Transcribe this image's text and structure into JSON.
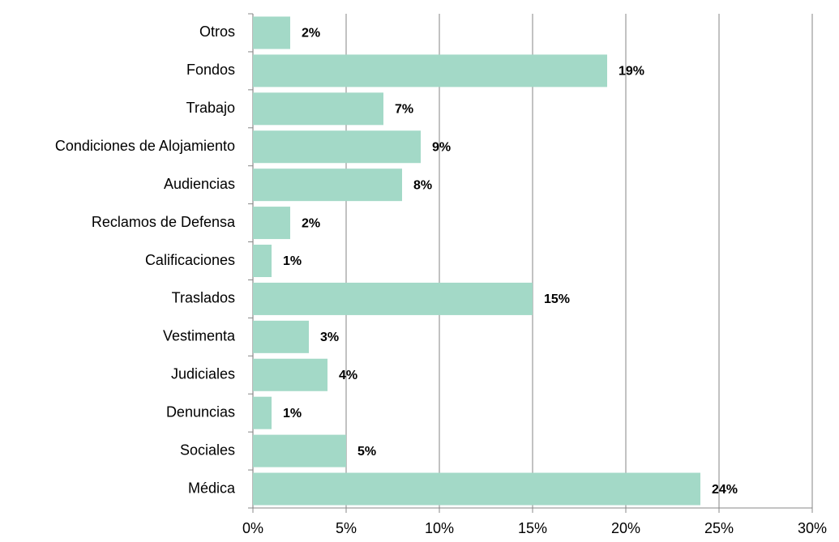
{
  "chart_data": {
    "type": "hbar",
    "categories": [
      "Otros",
      "Fondos",
      "Trabajo",
      "Condiciones de Alojamiento",
      "Audiencias",
      "Reclamos de Defensa",
      "Calificaciones",
      "Traslados",
      "Vestimenta",
      "Judiciales",
      "Denuncias",
      "Sociales",
      "Médica"
    ],
    "values": [
      2,
      19,
      7,
      9,
      8,
      2,
      1,
      15,
      3,
      4,
      1,
      5,
      24
    ],
    "value_labels": [
      "2%",
      "19%",
      "7%",
      "9%",
      "8%",
      "2%",
      "1%",
      "15%",
      "3%",
      "4%",
      "1%",
      "5%",
      "24%"
    ],
    "color": "#a3d9c7",
    "xlim": [
      0,
      30
    ],
    "xticks": [
      {
        "value": 0,
        "label": "0%"
      },
      {
        "value": 5,
        "label": "5%"
      },
      {
        "value": 10,
        "label": "10%"
      },
      {
        "value": 15,
        "label": "15%"
      },
      {
        "value": 20,
        "label": "20%"
      },
      {
        "value": 25,
        "label": "25%"
      },
      {
        "value": 30,
        "label": "30%"
      }
    ],
    "grid": true
  }
}
